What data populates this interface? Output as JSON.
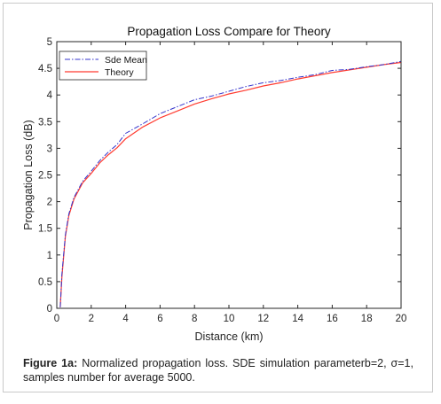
{
  "caption": {
    "label": "Figure 1a:",
    "text": " Normalized propagation loss. SDE simulation parameterb=2, σ=1, samples number for average 5000."
  },
  "chart_data": {
    "type": "line",
    "title": "Propagation Loss Compare for Theory",
    "xlabel": "Distance (km)",
    "ylabel": "Propagation Loss (dB)",
    "xlim": [
      0,
      20
    ],
    "ylim": [
      0,
      5
    ],
    "xticks": [
      "0",
      "2",
      "4",
      "6",
      "8",
      "10",
      "12",
      "14",
      "16",
      "18",
      "20"
    ],
    "yticks": [
      "0",
      "0.5",
      "1",
      "1.5",
      "2",
      "2.5",
      "3",
      "3.5",
      "4",
      "4.5",
      "5"
    ],
    "grid": false,
    "legend_position": "top-left",
    "series": [
      {
        "name": "Sde Mean",
        "color": "#3333cc",
        "style": "dash-dot",
        "x": [
          0.2,
          0.3,
          0.5,
          0.7,
          1.0,
          1.5,
          2.0,
          2.5,
          3.0,
          3.5,
          4.0,
          5.0,
          6.0,
          7.0,
          8.0,
          9.0,
          10.0,
          11.0,
          12.0,
          13.0,
          14.0,
          15.0,
          16.0,
          17.0,
          18.0,
          19.0,
          20.0
        ],
        "y": [
          0.02,
          0.65,
          1.38,
          1.77,
          2.08,
          2.38,
          2.57,
          2.77,
          2.93,
          3.07,
          3.28,
          3.46,
          3.65,
          3.78,
          3.91,
          3.98,
          4.07,
          4.16,
          4.23,
          4.27,
          4.33,
          4.38,
          4.46,
          4.48,
          4.53,
          4.57,
          4.63
        ]
      },
      {
        "name": "Theory",
        "color": "#ff3b30",
        "style": "solid",
        "x": [
          0.2,
          0.3,
          0.5,
          0.7,
          1.0,
          1.5,
          2.0,
          2.5,
          3.0,
          3.5,
          4.0,
          5.0,
          6.0,
          7.0,
          8.0,
          9.0,
          10.0,
          11.0,
          12.0,
          13.0,
          14.0,
          15.0,
          16.0,
          17.0,
          18.0,
          19.0,
          20.0
        ],
        "y": [
          0.02,
          0.6,
          1.35,
          1.74,
          2.05,
          2.35,
          2.53,
          2.73,
          2.88,
          3.01,
          3.18,
          3.4,
          3.57,
          3.7,
          3.83,
          3.93,
          4.02,
          4.09,
          4.17,
          4.23,
          4.3,
          4.36,
          4.42,
          4.47,
          4.52,
          4.57,
          4.61
        ]
      }
    ]
  }
}
